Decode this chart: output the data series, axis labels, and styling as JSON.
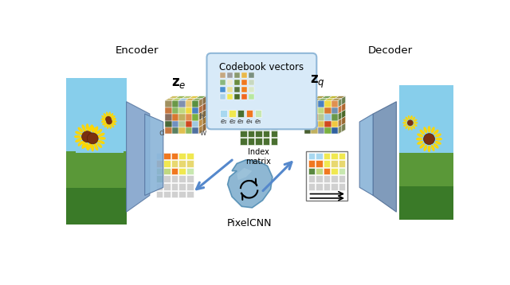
{
  "bg_color": "#ffffff",
  "codebook_colors_grid": [
    [
      "#c4a882",
      "#9e9e9e",
      "#8a9a6e",
      "#e8b84b",
      "#7a9080"
    ],
    [
      "#8ab87e",
      "#f0ead0",
      "#6b8c3e",
      "#f07820",
      "#c8d8c0"
    ],
    [
      "#4a90d0",
      "#e8e098",
      "#5a7840",
      "#f08020",
      "#d8e8c8"
    ],
    [
      "#a8d0e8",
      "#f0e850",
      "#4a6c28",
      "#f06820",
      "#b8e8a0"
    ]
  ],
  "codebook_single_row": [
    "#a8d8f0",
    "#f0e850",
    "#4a7030",
    "#f07820",
    "#c8e8b0"
  ],
  "codebook_labels": [
    "e₁",
    "e₂",
    "e₃",
    "e₄",
    "e₅"
  ],
  "encoder_label": "Encoder",
  "decoder_label": "Decoder",
  "pixelcnn_label": "PixelCNN",
  "index_matrix_colors": [
    [
      "#a8d8f0",
      "#a8d8f0",
      "#a8d8f0",
      "#f0e850",
      "#f0e850"
    ],
    [
      "#f07820",
      "#e8d870",
      "#e8d870",
      "#f0e850",
      "#f0e850"
    ],
    [
      "#e8d870",
      "#e8d870",
      "#f07820",
      "#e8d870",
      "#f0e850"
    ],
    [
      "#4a7030",
      "#4a7030",
      "#4a7030",
      "#4a7030",
      "#4a7030"
    ],
    [
      "#4a7030",
      "#4a7030",
      "#4a7030",
      "#4a7030",
      "#4a7030"
    ],
    [
      "#4a7030",
      "#4a7030",
      "#4a7030",
      "#4a7030",
      "#4a7030"
    ]
  ],
  "bottom_left_grid": [
    [
      "#a8d8f0",
      "#f07820",
      "#f07820",
      "#f0e850",
      "#f0e850"
    ],
    [
      "#f07820",
      "#f0e850",
      "#e8d870",
      "#e8d870",
      "#e8d870"
    ],
    [
      "#8ab860",
      "#c0d880",
      "#f07820",
      "#f0e850",
      "#c8e8b0"
    ],
    [
      "#5a8840",
      "#d0d0d0",
      "#d0d0d0",
      "#d0d0d0",
      "#d0d0d0"
    ],
    [
      "#d0d0d0",
      "#d0d0d0",
      "#d0d0d0",
      "#d0d0d0",
      "#d0d0d0"
    ],
    [
      "#d0d0d0",
      "#d0d0d0",
      "#d0d0d0",
      "#d0d0d0",
      "#d0d0d0"
    ]
  ],
  "bottom_right_grid": [
    [
      "#a8d8f0",
      "#a8d8f0",
      "#f0e850",
      "#f0e850",
      "#f0e850"
    ],
    [
      "#f07820",
      "#f07820",
      "#f0e850",
      "#e8d870",
      "#e8d870"
    ],
    [
      "#5a8840",
      "#c0d880",
      "#f07820",
      "#f0e850",
      "#c8e8b0"
    ],
    [
      "#d0d0d0",
      "#d0d0d0",
      "#d0d0d0",
      "#d0d0d0",
      "#d0d0d0"
    ],
    [
      "#d0d0d0",
      "#d0d0d0",
      "#d0d0d0",
      "#d0d0d0",
      "#d0d0d0"
    ]
  ],
  "arrow_color": "#5588cc",
  "ze_front": [
    [
      "#a09060",
      "#6a9848",
      "#8090b0",
      "#e8c870",
      "#5a9040"
    ],
    [
      "#c87840",
      "#8ab860",
      "#c0d880",
      "#f0d840",
      "#4a80c0"
    ],
    [
      "#8a7060",
      "#d87830",
      "#c0b060",
      "#e09050",
      "#7ab040"
    ],
    [
      "#4a6838",
      "#7090c0",
      "#b8c890",
      "#d04820",
      "#a0c8e0"
    ],
    [
      "#c87840",
      "#5a8060",
      "#e0c050",
      "#8ab860",
      "#5070a0"
    ]
  ],
  "zq_front": [
    [
      "#5a8840",
      "#c8b870",
      "#4a80c0",
      "#f0d840",
      "#e09050"
    ],
    [
      "#8ab860",
      "#e8d060",
      "#c0d880",
      "#d87830",
      "#7090b0"
    ],
    [
      "#3a6828",
      "#f07020",
      "#b8c890",
      "#a0c8e0",
      "#6a9848"
    ],
    [
      "#7ab040",
      "#5070a0",
      "#e0c050",
      "#d04820",
      "#f0c840"
    ],
    [
      "#4a6030",
      "#c0b060",
      "#8090b0",
      "#7ab040",
      "#3060a0"
    ]
  ]
}
